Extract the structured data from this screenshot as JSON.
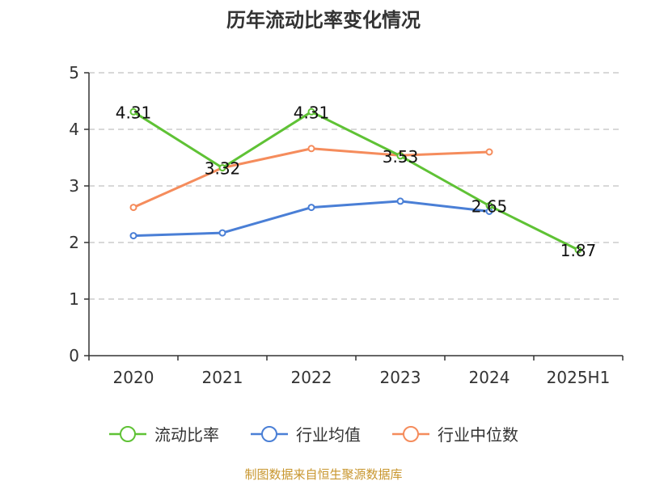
{
  "chart_data": {
    "type": "line",
    "title": "历年流动比率变化情况",
    "categories": [
      "2020",
      "2021",
      "2022",
      "2023",
      "2024",
      "2025H1"
    ],
    "ylim": [
      0,
      5
    ],
    "yticks": [
      "0",
      "1",
      "2",
      "3",
      "4",
      "5"
    ],
    "grid": true,
    "legend_position": "bottom",
    "series": [
      {
        "name": "流动比率",
        "color": "#5fc235",
        "values": [
          4.31,
          3.32,
          4.31,
          3.53,
          2.65,
          1.87
        ],
        "labels": [
          "4.31",
          "3.32",
          "4.31",
          "3.53",
          "2.65",
          "1.87"
        ]
      },
      {
        "name": "行业均值",
        "color": "#4a7fd6",
        "values": [
          2.12,
          2.17,
          2.62,
          2.73,
          2.55,
          null
        ]
      },
      {
        "name": "行业中位数",
        "color": "#f58c5c",
        "values": [
          2.62,
          3.32,
          3.66,
          3.54,
          3.6,
          null
        ]
      }
    ],
    "source": "制图数据来自恒生聚源数据库",
    "source_color": "#c8962e"
  }
}
